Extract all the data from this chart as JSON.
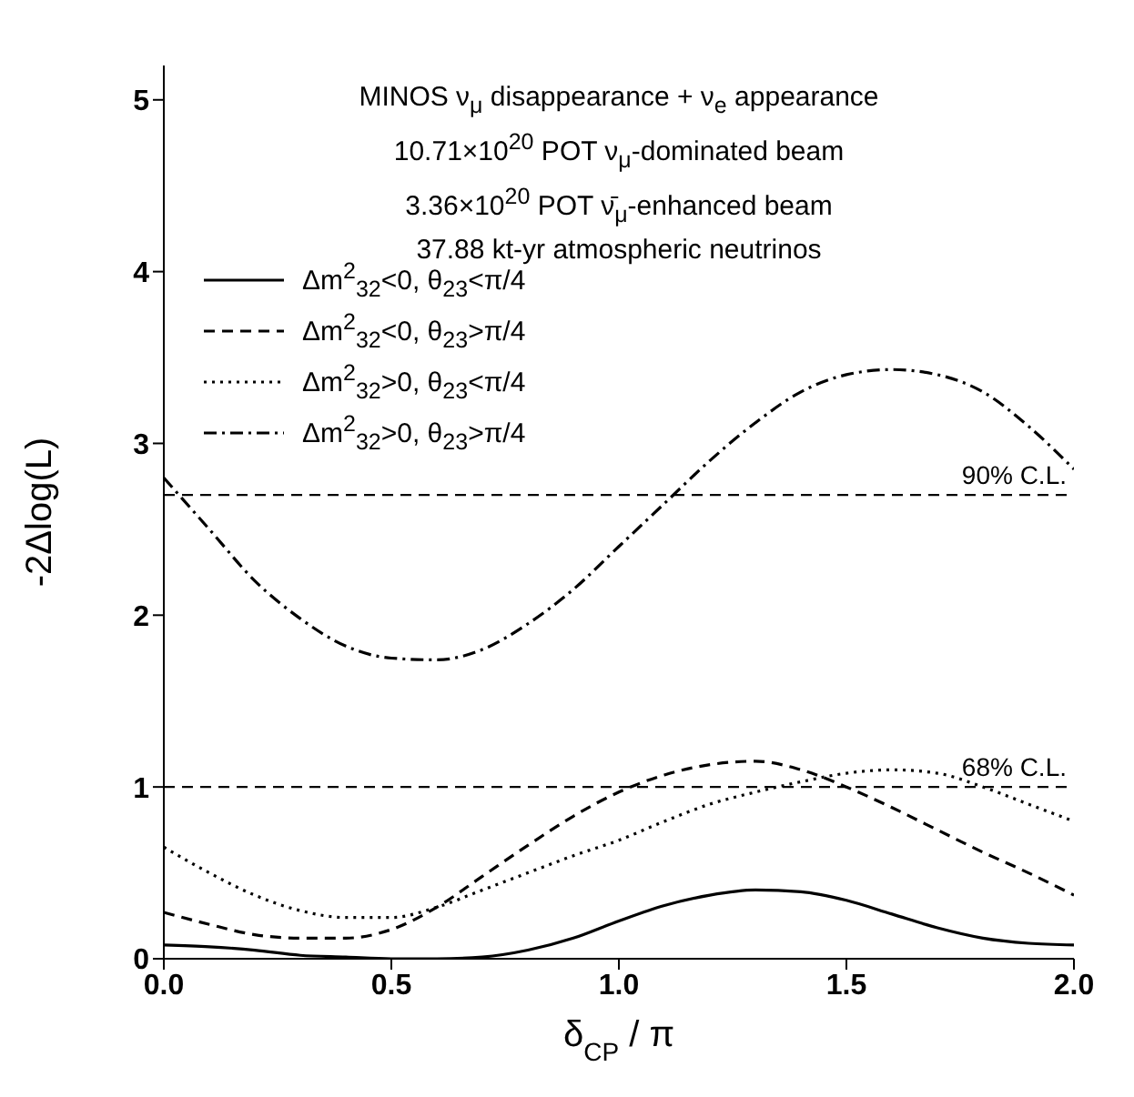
{
  "chart_data": {
    "type": "line",
    "title": "MINOS ν$_{μ}$ disappearance + ν$_{e}$ appearance",
    "annotations": [
      "10.71×10$^{20}$ POT ν$_{μ}$-dominated beam",
      "3.36×10$^{20}$ POT ν̄$_{μ}$-enhanced beam",
      "37.88 kt-yr atmospheric neutrinos"
    ],
    "xlabel": "δ$_{CP}$ / π",
    "ylabel": "-2Δlog(L)",
    "x": [
      0,
      0.1,
      0.2,
      0.3,
      0.4,
      0.5,
      0.6,
      0.7,
      0.8,
      0.9,
      1.0,
      1.1,
      1.2,
      1.3,
      1.4,
      1.5,
      1.6,
      1.7,
      1.8,
      1.9,
      2.0
    ],
    "series": [
      {
        "name": "Δm$^{2}$$_{32}$<0,  θ$_{23}$<π/4",
        "color": "#000000",
        "line_style": "solid",
        "values": [
          0.08,
          0.07,
          0.05,
          0.02,
          0.01,
          0,
          0,
          0.01,
          0.05,
          0.12,
          0.22,
          0.31,
          0.37,
          0.4,
          0.39,
          0.34,
          0.26,
          0.18,
          0.12,
          0.09,
          0.08
        ]
      },
      {
        "name": "Δm$^{2}$$_{32}$<0,  θ$_{23}$>π/4",
        "color": "#000000",
        "line_style": "dashed",
        "values": [
          0.27,
          0.2,
          0.14,
          0.12,
          0.12,
          0.17,
          0.3,
          0.48,
          0.66,
          0.83,
          0.97,
          1.07,
          1.13,
          1.15,
          1.1,
          1.0,
          0.88,
          0.75,
          0.62,
          0.5,
          0.37
        ]
      },
      {
        "name": "Δm$^{2}$$_{32}$>0,  θ$_{23}$<π/4",
        "color": "#000000",
        "line_style": "dotted",
        "values": [
          0.65,
          0.5,
          0.37,
          0.28,
          0.24,
          0.24,
          0.3,
          0.4,
          0.5,
          0.6,
          0.69,
          0.8,
          0.9,
          0.97,
          1.03,
          1.08,
          1.1,
          1.08,
          1.0,
          0.9,
          0.8
        ]
      },
      {
        "name": "Δm$^{2}$$_{32}$>0,  θ$_{23}$>π/4",
        "color": "#000000",
        "line_style": "dashdot",
        "values": [
          2.8,
          2.5,
          2.2,
          1.98,
          1.82,
          1.75,
          1.74,
          1.8,
          1.95,
          2.15,
          2.4,
          2.65,
          2.9,
          3.12,
          3.3,
          3.4,
          3.43,
          3.4,
          3.3,
          3.1,
          2.85
        ]
      }
    ],
    "xlim": [
      0,
      2
    ],
    "xticks": [
      {
        "value": 0,
        "label": "0.0"
      },
      {
        "value": 0.5,
        "label": "0.5"
      },
      {
        "value": 1,
        "label": "1.0"
      },
      {
        "value": 1.5,
        "label": "1.5"
      },
      {
        "value": 2,
        "label": "2.0"
      }
    ],
    "ylim": [
      0,
      5.2
    ],
    "yticks": [
      0,
      1,
      2,
      3,
      4,
      5
    ],
    "ref_lines": [
      {
        "axis": "y",
        "value": 2.7,
        "label": "90% C.L.",
        "color": "#000000",
        "line_style": "dashed"
      },
      {
        "axis": "y",
        "value": 1,
        "label": "68% C.L.",
        "color": "#000000",
        "line_style": "dashed"
      }
    ],
    "legend": "top left",
    "marker": "none",
    "grid": false
  }
}
